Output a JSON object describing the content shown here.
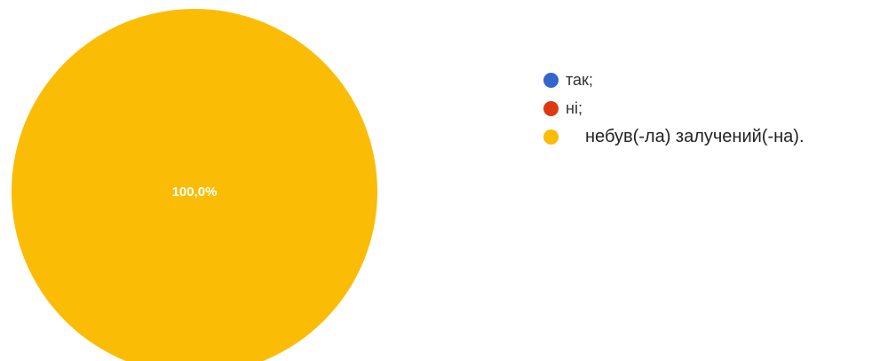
{
  "chart_data": {
    "type": "pie",
    "categories": [
      "так;",
      "ні;",
      "небув(-ла) залучений(-на)."
    ],
    "values": [
      0,
      0,
      100
    ],
    "value_labels": [
      "",
      "",
      "100,0%"
    ],
    "colors": [
      "#3366cc",
      "#dc3912",
      "#fbbc05"
    ],
    "legend_placement": "right"
  }
}
